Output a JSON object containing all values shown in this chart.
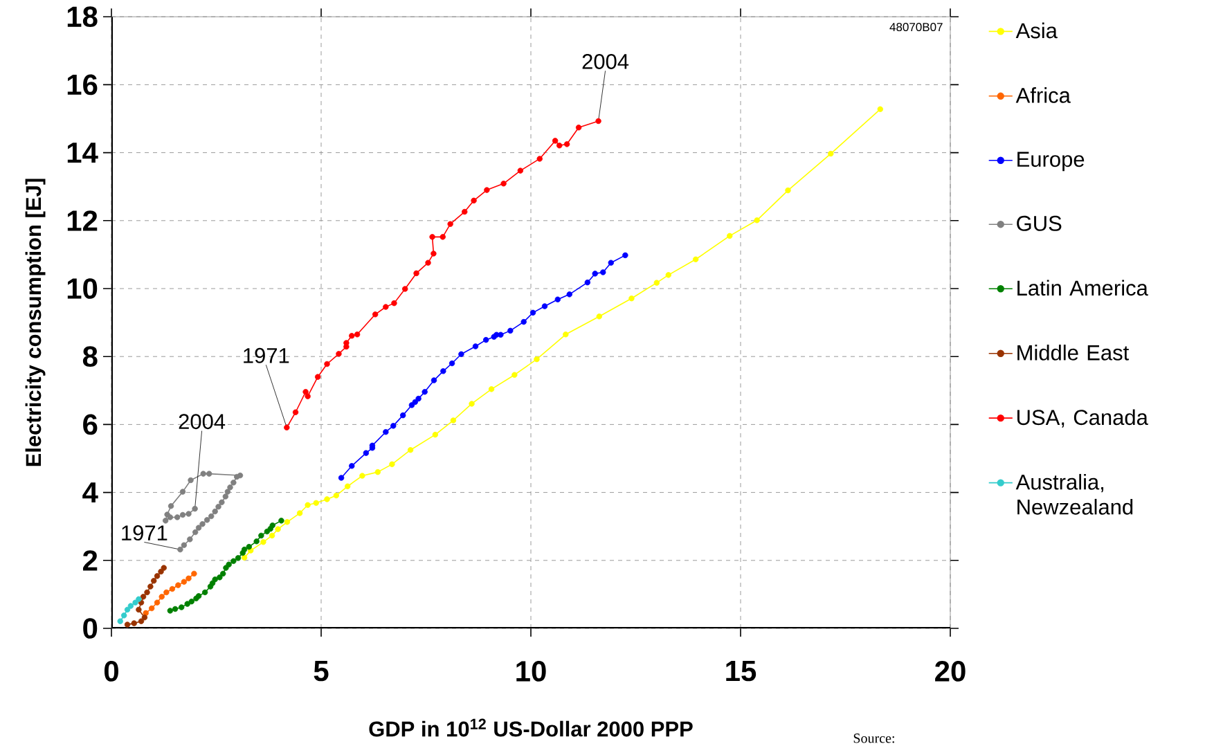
{
  "chart_data": {
    "type": "line",
    "xlabel": "GDP in 10$^{12}$ US-Dollar 2000 PPP",
    "ylabel": "Electricity consumption [EJ]",
    "xlim": [
      0,
      20
    ],
    "xticks": [
      0,
      5,
      10,
      15,
      20
    ],
    "ylim": [
      0,
      18
    ],
    "yticks": [
      0,
      2,
      4,
      6,
      8,
      10,
      12,
      14,
      16,
      18
    ],
    "grid": true,
    "legend": "right",
    "marker": "circle",
    "line_style": "solid",
    "series": [
      {
        "name": "Asia",
        "color": "#ffff00",
        "x": [
          3.17,
          3.32,
          3.62,
          3.83,
          3.97,
          4.19,
          4.49,
          4.68,
          4.88,
          5.14,
          5.36,
          5.63,
          5.98,
          6.35,
          6.69,
          7.13,
          7.72,
          8.15,
          8.59,
          9.06,
          9.61,
          10.14,
          10.83,
          11.63,
          12.4,
          13.0,
          13.28,
          13.93,
          14.74,
          15.39,
          16.13,
          17.15,
          18.33
        ],
        "values": [
          2.08,
          2.29,
          2.54,
          2.73,
          2.92,
          3.13,
          3.39,
          3.63,
          3.69,
          3.8,
          3.91,
          4.18,
          4.49,
          4.6,
          4.83,
          5.25,
          5.7,
          6.12,
          6.61,
          7.04,
          7.46,
          7.92,
          8.65,
          9.18,
          9.71,
          10.17,
          10.4,
          10.86,
          11.55,
          12.01,
          12.89,
          13.97,
          15.28
        ]
      },
      {
        "name": "Africa",
        "color": "#ff6600",
        "x": [
          0.82,
          0.96,
          1.09,
          1.2,
          1.31,
          1.45,
          1.59,
          1.73,
          1.84,
          1.97
        ],
        "values": [
          0.45,
          0.59,
          0.76,
          0.93,
          1.06,
          1.16,
          1.27,
          1.37,
          1.47,
          1.61
        ]
      },
      {
        "name": "Europe",
        "color": "#0000ff",
        "x": [
          5.48,
          5.73,
          6.07,
          6.22,
          6.22,
          6.54,
          6.72,
          6.95,
          7.16,
          7.24,
          7.32,
          7.47,
          7.69,
          7.91,
          8.12,
          8.34,
          8.68,
          8.93,
          9.12,
          9.18,
          9.28,
          9.51,
          9.83,
          10.05,
          10.33,
          10.64,
          10.92,
          11.35,
          11.53,
          11.72,
          11.91,
          12.25
        ],
        "values": [
          4.43,
          4.78,
          5.16,
          5.31,
          5.38,
          5.78,
          5.96,
          6.27,
          6.57,
          6.66,
          6.76,
          6.96,
          7.3,
          7.57,
          7.8,
          8.07,
          8.3,
          8.49,
          8.58,
          8.64,
          8.64,
          8.76,
          9.02,
          9.29,
          9.48,
          9.68,
          9.83,
          10.18,
          10.44,
          10.48,
          10.76,
          10.98
        ]
      },
      {
        "name": "GUS",
        "color": "#808080",
        "x": [
          1.64,
          1.73,
          1.87,
          2.0,
          2.08,
          2.17,
          2.28,
          2.38,
          2.47,
          2.55,
          2.63,
          2.72,
          2.77,
          2.83,
          2.91,
          2.99,
          3.07,
          2.33,
          2.19,
          1.89,
          1.7,
          1.42,
          1.33,
          1.29,
          1.4,
          1.57,
          1.7,
          1.84,
          1.99
        ],
        "values": [
          2.32,
          2.45,
          2.62,
          2.83,
          2.96,
          3.07,
          3.19,
          3.3,
          3.44,
          3.58,
          3.71,
          3.88,
          4.02,
          4.15,
          4.29,
          4.46,
          4.5,
          4.55,
          4.55,
          4.36,
          4.02,
          3.6,
          3.35,
          3.17,
          3.27,
          3.27,
          3.34,
          3.37,
          3.52
        ]
      },
      {
        "name": "Latin America",
        "color": "#008000",
        "x": [
          1.4,
          1.52,
          1.67,
          1.81,
          1.91,
          2.02,
          2.08,
          2.23,
          2.36,
          2.41,
          2.47,
          2.58,
          2.66,
          2.73,
          2.8,
          2.91,
          3.02,
          3.13,
          3.17,
          3.28,
          3.46,
          3.57,
          3.71,
          3.79,
          3.84,
          4.05
        ],
        "values": [
          0.52,
          0.57,
          0.62,
          0.72,
          0.79,
          0.88,
          0.95,
          1.06,
          1.23,
          1.33,
          1.44,
          1.5,
          1.61,
          1.78,
          1.88,
          1.98,
          2.07,
          2.22,
          2.32,
          2.4,
          2.56,
          2.73,
          2.85,
          2.93,
          3.03,
          3.17
        ]
      },
      {
        "name": "Middle East",
        "color": "#993300",
        "x": [
          0.38,
          0.54,
          0.71,
          0.79,
          0.65,
          0.71,
          0.76,
          0.85,
          0.93,
          1.01,
          1.09,
          1.18,
          1.25
        ],
        "values": [
          0.11,
          0.15,
          0.21,
          0.32,
          0.55,
          0.76,
          0.93,
          1.06,
          1.23,
          1.4,
          1.54,
          1.67,
          1.78
        ]
      },
      {
        "name": "USA, Canada",
        "color": "#ff0000",
        "x": [
          4.18,
          4.39,
          4.63,
          4.68,
          4.92,
          5.14,
          5.42,
          5.6,
          5.6,
          5.73,
          5.86,
          6.29,
          6.54,
          6.74,
          7.0,
          7.27,
          7.55,
          7.68,
          7.65,
          7.9,
          8.08,
          8.42,
          8.64,
          8.95,
          9.35,
          9.75,
          10.21,
          10.58,
          10.68,
          10.86,
          11.14,
          11.61
        ],
        "values": [
          5.91,
          6.36,
          6.96,
          6.83,
          7.4,
          7.78,
          8.08,
          8.29,
          8.4,
          8.61,
          8.65,
          9.24,
          9.46,
          9.57,
          9.99,
          10.45,
          10.76,
          11.03,
          11.52,
          11.52,
          11.9,
          12.26,
          12.59,
          12.9,
          13.09,
          13.47,
          13.82,
          14.35,
          14.21,
          14.25,
          14.74,
          14.93
        ]
      },
      {
        "name": "Australia, Newzealand",
        "color": "#33cccc",
        "x": [
          0.21,
          0.3,
          0.38,
          0.46,
          0.57,
          0.65
        ],
        "values": [
          0.21,
          0.38,
          0.55,
          0.66,
          0.76,
          0.86
        ]
      }
    ],
    "annotations": [
      {
        "text": "1971",
        "x": 4.18,
        "y": 5.91
      },
      {
        "text": "2004",
        "x": 11.61,
        "y": 14.93
      },
      {
        "text": "1971",
        "x": 1.64,
        "y": 2.32
      },
      {
        "text": "2004",
        "x": 1.99,
        "y": 3.52
      },
      "48070B07",
      "Source:"
    ]
  }
}
